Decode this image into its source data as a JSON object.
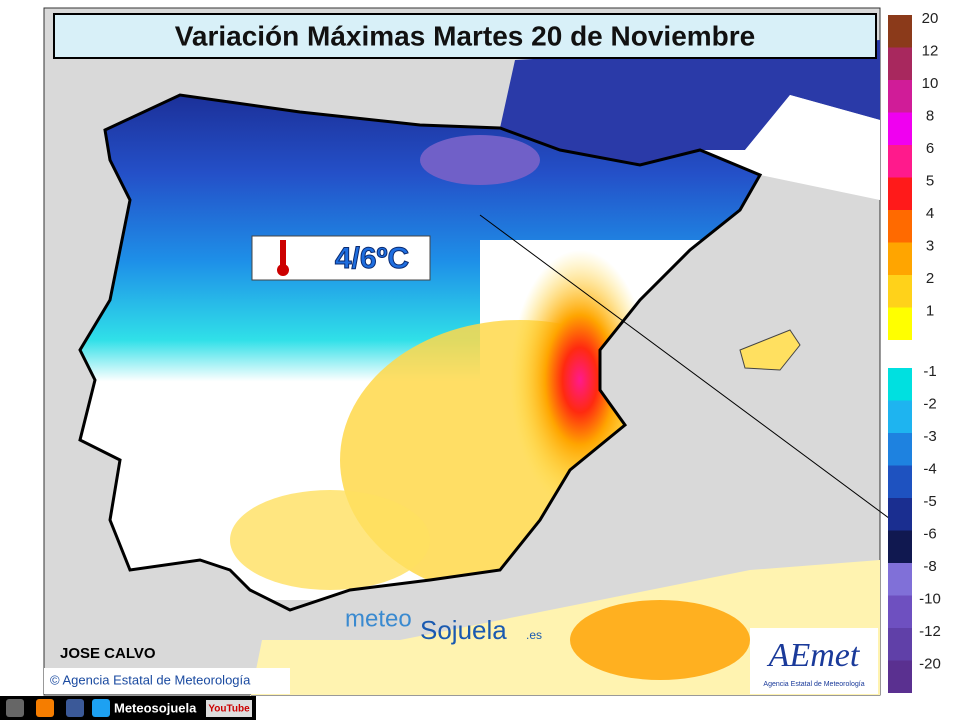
{
  "header": {
    "title": "Variación Máximas Martes 20 de Noviembre"
  },
  "map": {
    "annotation": "4/6ºC",
    "author": "JOSE CALVO",
    "credit": "© Agencia Estatal de Meteorología",
    "watermark": {
      "part1": "meteo",
      "part2": "Sojuela",
      "part3": ".es"
    },
    "logo": {
      "name": "AEmet",
      "caption": "Agencia Estatal de Meteorología"
    }
  },
  "legend": {
    "positive": [
      {
        "label": "20",
        "color": "#8b3a1a"
      },
      {
        "label": "12",
        "color": "#a8285e"
      },
      {
        "label": "10",
        "color": "#d01c98"
      },
      {
        "label": "8",
        "color": "#f000f0"
      },
      {
        "label": "6",
        "color": "#ff1a8c"
      },
      {
        "label": "5",
        "color": "#ff1a1a"
      },
      {
        "label": "4",
        "color": "#ff6a00"
      },
      {
        "label": "3",
        "color": "#ffa500"
      },
      {
        "label": "2",
        "color": "#ffd21a"
      },
      {
        "label": "1",
        "color": "#ffff00"
      }
    ],
    "negative": [
      {
        "label": "-1",
        "color": "#00e0e0"
      },
      {
        "label": "-2",
        "color": "#1eb4f0"
      },
      {
        "label": "-3",
        "color": "#1e82e0"
      },
      {
        "label": "-4",
        "color": "#1e52c0"
      },
      {
        "label": "-5",
        "color": "#1a2e90"
      },
      {
        "label": "-6",
        "color": "#101850"
      },
      {
        "label": "-8",
        "color": "#8070d8"
      },
      {
        "label": "-10",
        "color": "#6e50c0"
      },
      {
        "label": "-12",
        "color": "#6040a8"
      },
      {
        "label": "-20",
        "color": "#5a3090"
      }
    ]
  },
  "footer": {
    "channel": "Meteosojuela",
    "youtube": "YouTube"
  }
}
